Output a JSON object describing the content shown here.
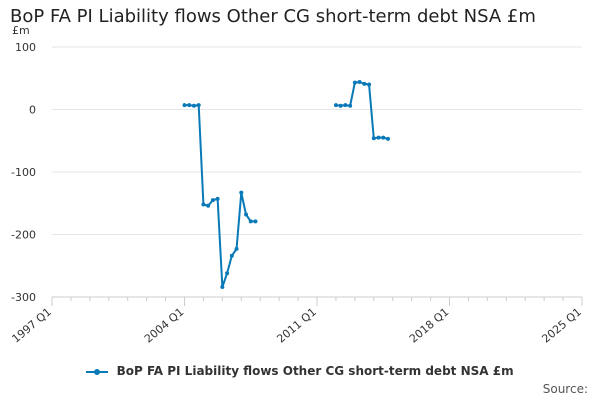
{
  "title": "BoP FA PI Liability flows Other CG short-term debt NSA £m",
  "unit_label": "£m",
  "source_label": "Source:",
  "colors": {
    "series": "#0a79b8",
    "grid": "#e6e6e6",
    "axis": "#cccccc"
  },
  "chart_data": {
    "type": "line",
    "title": "BoP FA PI Liability flows Other CG short-term debt NSA £m",
    "ylabel": "£m",
    "xlabel": "",
    "ylim": [
      -300,
      100
    ],
    "y_ticks": [
      100,
      0,
      -100,
      -200,
      -300
    ],
    "x_range": [
      "1997 Q1",
      "2025 Q1"
    ],
    "x_ticks": [
      "1997 Q1",
      "2004 Q1",
      "2011 Q1",
      "2018 Q1",
      "2025 Q1"
    ],
    "grid": true,
    "legend_position": "bottom",
    "series": [
      {
        "name": "BoP FA PI Liability flows Other CG short-term debt NSA £m",
        "points": [
          [
            "2004 Q1",
            7
          ],
          [
            "2004 Q2",
            7
          ],
          [
            "2004 Q3",
            6
          ],
          [
            "2004 Q4",
            7
          ],
          [
            "2005 Q1",
            -152
          ],
          [
            "2005 Q2",
            -154
          ],
          [
            "2005 Q3",
            -145
          ],
          [
            "2005 Q4",
            -143
          ],
          [
            "2006 Q1",
            -284
          ],
          [
            "2006 Q2",
            -262
          ],
          [
            "2006 Q3",
            -234
          ],
          [
            "2006 Q4",
            -223
          ],
          [
            "2007 Q1",
            -133
          ],
          [
            "2007 Q2",
            -168
          ],
          [
            "2007 Q3",
            -179
          ],
          [
            "2007 Q4",
            -179
          ],
          [
            "2012 Q1",
            7
          ],
          [
            "2012 Q2",
            6
          ],
          [
            "2012 Q3",
            7
          ],
          [
            "2012 Q4",
            6
          ],
          [
            "2013 Q1",
            43
          ],
          [
            "2013 Q2",
            44
          ],
          [
            "2013 Q3",
            41
          ],
          [
            "2013 Q4",
            40
          ],
          [
            "2014 Q1",
            -46
          ],
          [
            "2014 Q2",
            -45
          ],
          [
            "2014 Q3",
            -45
          ],
          [
            "2014 Q4",
            -47
          ]
        ]
      }
    ]
  }
}
